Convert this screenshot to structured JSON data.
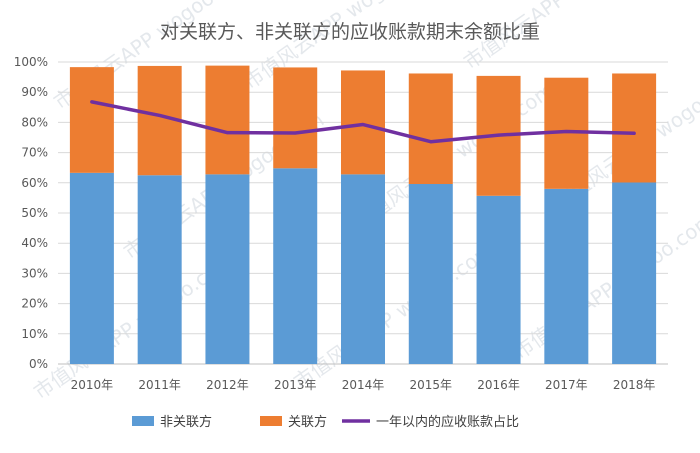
{
  "chart_data": {
    "type": "bar",
    "stacked": true,
    "title": "对关联方、非关联方的应收账款期末余额比重",
    "categories": [
      "2010年",
      "2011年",
      "2012年",
      "2013年",
      "2014年",
      "2015年",
      "2016年",
      "2017年",
      "2018年"
    ],
    "series": [
      {
        "name": "非关联方",
        "type": "bar",
        "color": "#5b9bd5",
        "values": [
          63.3,
          62.5,
          62.8,
          64.8,
          62.8,
          59.6,
          55.7,
          58.0,
          60.1
        ]
      },
      {
        "name": "关联方",
        "type": "bar",
        "color": "#ed7d31",
        "values": [
          35.0,
          36.2,
          36.0,
          33.4,
          34.4,
          36.6,
          39.7,
          36.8,
          36.1
        ]
      },
      {
        "name": "一年以内的应收账款占比",
        "type": "line",
        "color": "#7030a0",
        "values": [
          86.8,
          82.3,
          76.6,
          76.5,
          79.3,
          73.6,
          75.8,
          77.0,
          76.4
        ]
      }
    ],
    "y_ticks": [
      "0%",
      "10%",
      "20%",
      "30%",
      "40%",
      "50%",
      "60%",
      "70%",
      "80%",
      "90%",
      "100%"
    ],
    "ylim": [
      0,
      100
    ],
    "legend_position": "bottom",
    "watermark": "市值风云APP  wogoo.com"
  }
}
